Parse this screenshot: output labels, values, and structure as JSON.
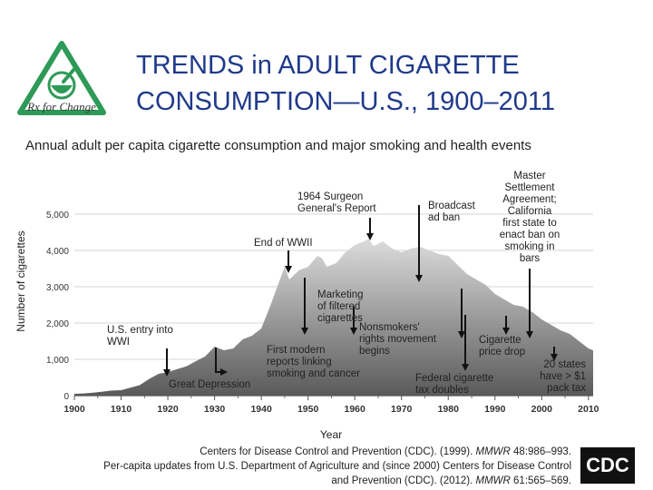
{
  "header": {
    "title_line1": "TRENDS in ADULT CIGARETTE",
    "title_line2": "CONSUMPTION—U.S., 1900–2011",
    "subtitle": "Annual adult per capita cigarette consumption and major smoking and health events",
    "logo_caption": "Rx for Change"
  },
  "chart_data": {
    "type": "area",
    "ylabel": "Number of cigarettes",
    "xlabel": "Year",
    "xlim": [
      1900,
      2011
    ],
    "ylim": [
      0,
      5000
    ],
    "x_ticks": [
      1900,
      1910,
      1920,
      1930,
      1940,
      1950,
      1960,
      1970,
      1980,
      1990,
      2000,
      2010
    ],
    "y_ticks": [
      0,
      1000,
      2000,
      3000,
      4000,
      5000
    ],
    "y_tick_labels": [
      "0",
      "1,000",
      "2,000",
      "3,000",
      "4,000",
      "5,000"
    ],
    "x": [
      1900,
      1902,
      1904,
      1906,
      1908,
      1910,
      1912,
      1914,
      1916,
      1918,
      1920,
      1922,
      1924,
      1926,
      1928,
      1930,
      1932,
      1934,
      1936,
      1938,
      1940,
      1942,
      1944,
      1945,
      1946,
      1948,
      1950,
      1952,
      1953,
      1954,
      1956,
      1958,
      1960,
      1962,
      1963,
      1964,
      1966,
      1968,
      1970,
      1972,
      1974,
      1976,
      1978,
      1980,
      1982,
      1984,
      1986,
      1988,
      1990,
      1992,
      1994,
      1996,
      1998,
      2000,
      2002,
      2004,
      2006,
      2008,
      2010,
      2011
    ],
    "values": [
      50,
      60,
      80,
      110,
      140,
      150,
      220,
      290,
      460,
      600,
      650,
      730,
      810,
      950,
      1080,
      1350,
      1250,
      1300,
      1550,
      1650,
      1850,
      2500,
      3200,
      3550,
      3200,
      3450,
      3550,
      3850,
      3780,
      3550,
      3650,
      3950,
      4150,
      4250,
      4320,
      4120,
      4250,
      4050,
      3950,
      4050,
      4100,
      4000,
      3900,
      3850,
      3600,
      3350,
      3200,
      3050,
      2800,
      2650,
      2500,
      2450,
      2300,
      2100,
      1950,
      1800,
      1700,
      1500,
      1300,
      1250
    ],
    "annotations": [
      {
        "id": "ww1",
        "lines": [
          "U.S. entry into",
          "WWI"
        ],
        "year": 1918
      },
      {
        "id": "depression",
        "lines": [
          "Great Depression"
        ],
        "year": 1932
      },
      {
        "id": "end-ww2",
        "lines": [
          "End of WWII"
        ],
        "year": 1945
      },
      {
        "id": "first-modern",
        "lines": [
          "First modern",
          "reports linking",
          "smoking and cancer"
        ],
        "year": 1953
      },
      {
        "id": "marketing",
        "lines": [
          "Marketing",
          "of filtered",
          "cigarettes"
        ],
        "year": 1956
      },
      {
        "id": "surgeon",
        "lines": [
          "1964 Surgeon",
          "General's Report"
        ],
        "year": 1964
      },
      {
        "id": "broadcast",
        "lines": [
          "Broadcast",
          "ad ban"
        ],
        "year": 1971
      },
      {
        "id": "nonsmokers",
        "lines": [
          "Nonsmokers'",
          "rights movement",
          "begins"
        ],
        "year": 1975
      },
      {
        "id": "federal-tax",
        "lines": [
          "Federal cigarette",
          "tax doubles"
        ],
        "year": 1983
      },
      {
        "id": "price-drop",
        "lines": [
          "Cigarette",
          "price drop"
        ],
        "year": 1993
      },
      {
        "id": "msa",
        "lines": [
          "Master",
          "Settlement",
          "Agreement;",
          "California",
          "first state to",
          "enact ban on",
          "smoking in",
          "bars"
        ],
        "year": 1998
      },
      {
        "id": "states-tax",
        "lines": [
          "20 states",
          "have > $1",
          "pack tax"
        ],
        "year": 2002
      }
    ]
  },
  "source": {
    "line1_text": "Centers for Disease Control and Prevention (CDC). (1999). ",
    "line1_journal": "MMWR",
    "line1_tail": " 48:986–993.",
    "line2": "Per-capita updates from U.S. Department of Agriculture and (since 2000) Centers for Disease Control",
    "line3_text": "and Prevention (CDC). (2012). ",
    "line3_journal": "MMWR",
    "line3_tail": " 61:565–569.",
    "cdc_logo_text": "CDC"
  },
  "colors": {
    "title": "#1f3a8a",
    "area_top": "#dcdcdc",
    "area_bottom": "#5a5a5a",
    "logo_green": "#2e9a57"
  }
}
